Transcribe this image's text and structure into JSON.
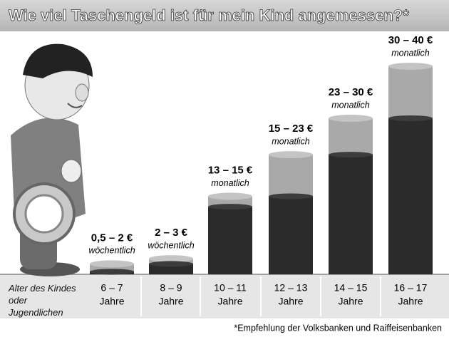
{
  "chart_data": {
    "type": "range_bar",
    "title": "Wie viel Taschengeld ist für mein Kind angemessen?*",
    "x_label": "Alter des Kindes oder Jugendlichen",
    "categories": [
      "6 – 7",
      "8 – 9",
      "10 – 11",
      "12 – 13",
      "14 – 15",
      "16 – 17"
    ],
    "category_unit": "Jahre",
    "low": [
      0.5,
      2,
      13,
      15,
      23,
      30
    ],
    "high": [
      2,
      3,
      15,
      23,
      30,
      40
    ],
    "range_labels": [
      "0,5 – 2 €",
      "2 – 3 €",
      "13 – 15 €",
      "15 – 23 €",
      "23 – 30 €",
      "30 – 40 €"
    ],
    "periods": [
      "wöchentlich",
      "wöchentlich",
      "monatlich",
      "monatlich",
      "monatlich",
      "monatlich"
    ],
    "low_color": "#2b2b2b",
    "high_color": "#a9a9a9",
    "footnote": "*Empfehlung der Volksbanken und Raiffeisenbanken"
  }
}
